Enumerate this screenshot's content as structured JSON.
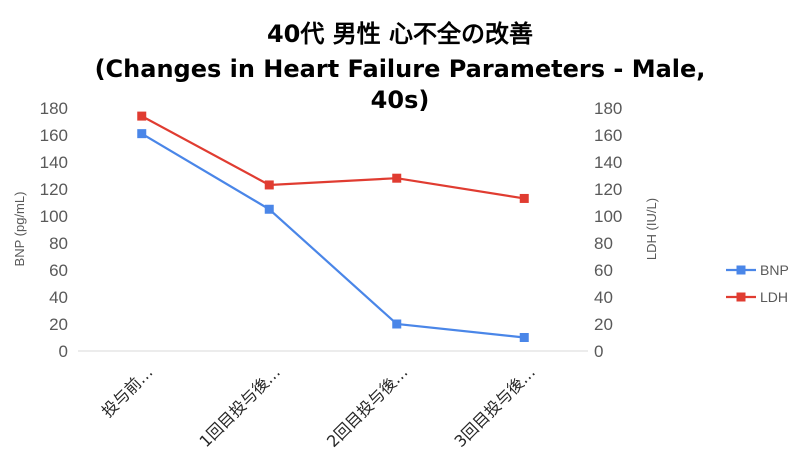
{
  "chart_data": {
    "type": "line",
    "title_lines": [
      "40代 男性 心不全の改善",
      "(Changes in Heart Failure Parameters - Male,",
      "40s)"
    ],
    "categories": [
      "投与前…",
      "1回目投与後…",
      "2回目投与後…",
      "3回目投与後…"
    ],
    "series": [
      {
        "name": "BNP",
        "values": [
          161,
          105,
          20,
          10
        ],
        "color": "#4a86e8",
        "axis": "left"
      },
      {
        "name": "LDH",
        "values": [
          174,
          123,
          128,
          113
        ],
        "color": "#e03c31",
        "axis": "right"
      }
    ],
    "ylabel_left": "BNP (pg/mL)",
    "ylabel_right": "LDH (IU/L)",
    "ylim": [
      0,
      180
    ],
    "y_ticks": [
      "0",
      "20",
      "40",
      "60",
      "80",
      "100",
      "120",
      "140",
      "160",
      "180"
    ],
    "legend_position": "right",
    "grid": false
  }
}
